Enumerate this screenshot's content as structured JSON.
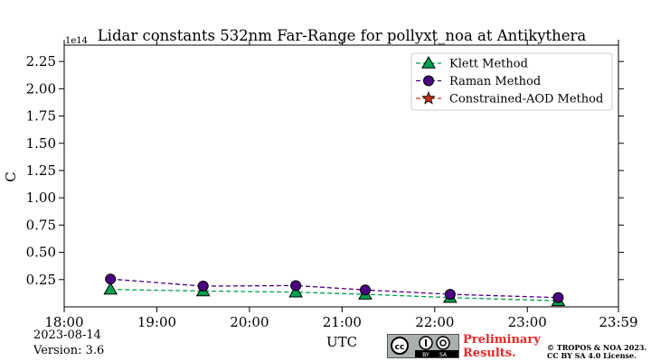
{
  "chart_data": {
    "type": "line",
    "title": "Lidar constants 532nm Far-Range for pollyxt_noa at Antikythera",
    "xlabel": "UTC",
    "ylabel": "C",
    "y_offset_label": "1e14",
    "xlim": [
      "18:00",
      "23:59"
    ],
    "ylim": [
      0.0,
      2.4
    ],
    "x_ticks": [
      "18:00",
      "19:00",
      "20:00",
      "21:00",
      "22:00",
      "23:00",
      "23:59"
    ],
    "y_ticks": [
      "0.25",
      "0.50",
      "0.75",
      "1.00",
      "1.25",
      "1.50",
      "1.75",
      "2.00",
      "2.25"
    ],
    "grid": false,
    "legend_position": "top-right",
    "series": [
      {
        "name": "Klett Method",
        "color": "#00a050",
        "marker": "triangle",
        "x": [
          "18:30",
          "19:30",
          "20:30",
          "21:15",
          "22:10",
          "23:20"
        ],
        "values": [
          0.16,
          0.145,
          0.135,
          0.115,
          0.085,
          0.055
        ]
      },
      {
        "name": "Raman Method",
        "color": "#4b0082",
        "marker": "circle",
        "x": [
          "18:30",
          "19:30",
          "20:30",
          "21:15",
          "22:10",
          "23:20"
        ],
        "values": [
          0.255,
          0.19,
          0.195,
          0.155,
          0.115,
          0.085
        ]
      },
      {
        "name": "Constrained-AOD Method",
        "color": "#c83214",
        "marker": "star",
        "x": [],
        "values": []
      }
    ]
  },
  "footer": {
    "date": "2023-08-14",
    "version": "Version: 3.6",
    "preliminary_line1": "Preliminary",
    "preliminary_line2": "Results.",
    "copyright_line1": "© TROPOS & NOA 2023.",
    "copyright_line2": "CC BY SA 4.0 License.",
    "license_badge_icons": [
      "cc-icon",
      "by-icon",
      "sa-icon"
    ],
    "license_badge_text": [
      "BY",
      "SA"
    ]
  }
}
